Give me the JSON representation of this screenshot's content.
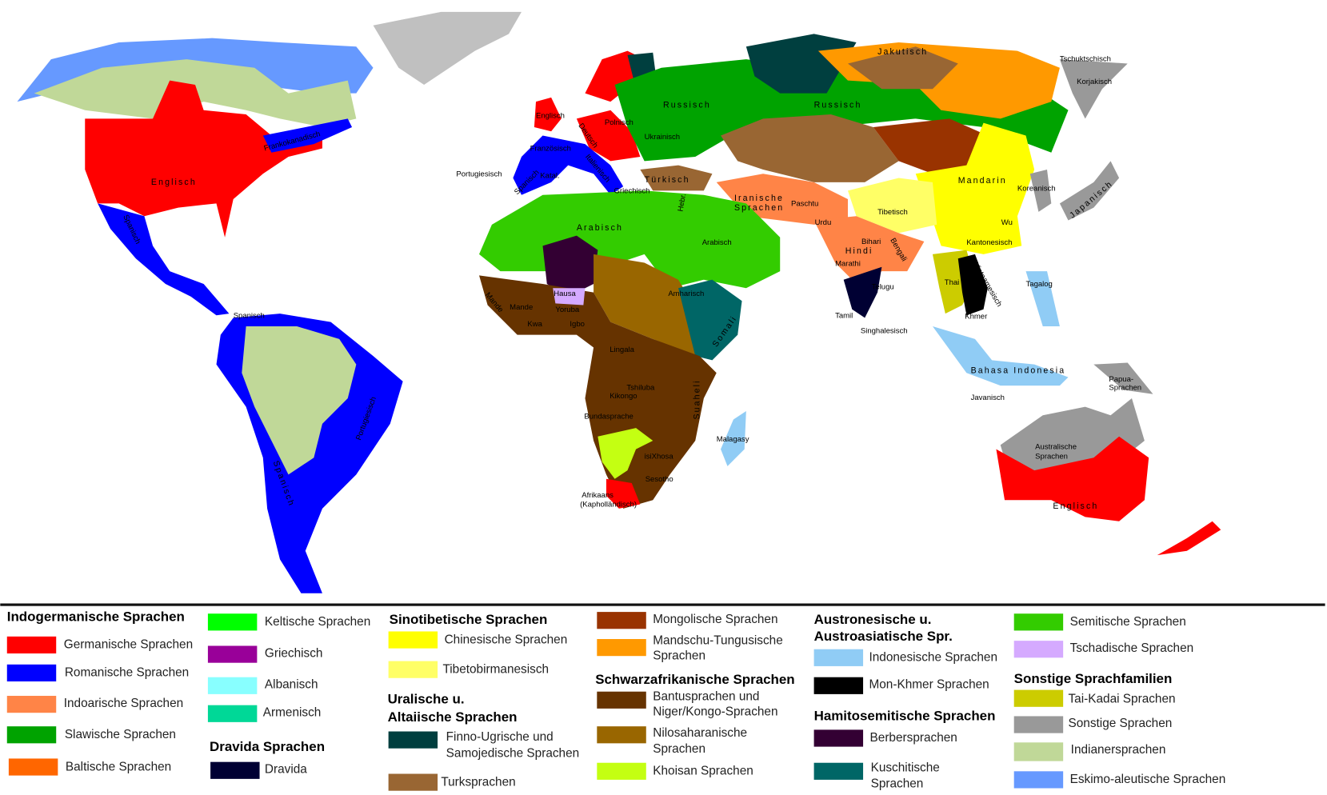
{
  "map_labels": {
    "na_englisch": "Englisch",
    "frankokanadisch": "Frankokanadisch",
    "mx_spanisch": "Spanisch",
    "ve_spanisch": "Spanisch",
    "br_portugiesisch": "Portugiesisch",
    "sa_spanisch": "Spanisch",
    "uk_englisch": "Englisch",
    "deutsch": "Deutsch",
    "polnisch": "Polnisch",
    "ukrainisch": "Ukrainisch",
    "russisch1": "Russisch",
    "russisch2": "Russisch",
    "jakutisch": "Jakutisch",
    "tschuktschisch": "Tschuktschisch",
    "korjakisch": "Korjakisch",
    "franzoesisch": "Französisch",
    "italienisch": "Italienisch",
    "portugiesisch": "Portugiesisch",
    "es_spanisch": "Spanisch",
    "katal": "Katal.",
    "griechisch": "Griechisch",
    "tuerkisch": "Türkisch",
    "hebr": "Hebr.",
    "iranische1": "Iranische",
    "iranische2": "Sprachen",
    "paschtu": "Paschtu",
    "urdu": "Urdu",
    "tibetisch": "Tibetisch",
    "mandarin": "Mandarin",
    "koreanisch": "Koreanisch",
    "japanisch": "Japanisch",
    "wu": "Wu",
    "kantonesisch": "Kantonesisch",
    "bihari": "Bihari",
    "hindi": "Hindi",
    "bengali": "Bengali",
    "marathi": "Marathi",
    "telugu": "Telugu",
    "tamil": "Tamil",
    "singhalesisch": "Singhalesisch",
    "thai": "Thai",
    "vietnamesisch": "Vietnamesisch",
    "khmer": "Khmer",
    "tagalog": "Tagalog",
    "bahasa": "Bahasa Indonesia",
    "javanisch": "Javanisch",
    "papua1": "Papua-",
    "papua2": "Sprachen",
    "austral1": "Australische",
    "austral2": "Sprachen",
    "au_englisch": "Englisch",
    "arabisch1": "Arabisch",
    "arabisch2": "Arabisch",
    "amharisch": "Amharisch",
    "somali": "Somali",
    "hausa": "Hausa",
    "yoruba": "Yoruba",
    "igbo": "Igbo",
    "mande1": "Mande",
    "mande2": "Mande",
    "kwa": "Kwa",
    "lingala": "Lingala",
    "tshiluba": "Tshiluba",
    "kikongo": "Kikongo",
    "bundasprache": "Bundasprache",
    "suaheli": "Suaheli",
    "isixhosa": "isiXhosa",
    "sesotho": "Sesotho",
    "afrikaans1": "Afrikaans",
    "afrikaans2": "(Kapholländisch)",
    "malagasy": "Malagasy"
  },
  "legend": {
    "indogermanisch": {
      "heading": "Indogermanische Sprachen",
      "items": [
        {
          "label": "Germanische Sprachen",
          "color": "#ff0000"
        },
        {
          "label": "Romanische Sprachen",
          "color": "#0000ff"
        },
        {
          "label": "Indoarische Sprachen",
          "color": "#ff8447"
        },
        {
          "label": "Slawische Sprachen",
          "color": "#00a300"
        },
        {
          "label": "Baltische Sprachen",
          "color": "#ff6600"
        },
        {
          "label": "Keltische Sprachen",
          "color": "#00ff00"
        },
        {
          "label": "Griechisch",
          "color": "#990099"
        },
        {
          "label": "Albanisch",
          "color": "#88ffff"
        },
        {
          "label": "Armenisch",
          "color": "#00d897"
        }
      ]
    },
    "dravida": {
      "heading": "Dravida Sprachen",
      "items": [
        {
          "label": "Dravida",
          "color": "#000033"
        }
      ]
    },
    "sinotibetisch": {
      "heading": "Sinotibetische Sprachen",
      "items": [
        {
          "label": "Chinesische Sprachen",
          "color": "#ffff00"
        },
        {
          "label": "Tibetobirmanesisch",
          "color": "#ffff66"
        }
      ]
    },
    "uralisch": {
      "heading1": "Uralische u.",
      "heading2": "Altaiische Sprachen",
      "items": [
        {
          "label1": "Finno-Ugrische und",
          "label2": "Samojedische Sprachen",
          "color": "#003f3f"
        },
        {
          "label": "Turksprachen",
          "color": "#996633"
        },
        {
          "label": "Mongolische Sprachen",
          "color": "#993300"
        },
        {
          "label1": "Mandschu-Tungusische",
          "label2": "Sprachen",
          "color": "#ff9900"
        }
      ]
    },
    "schwarzafrikanisch": {
      "heading": "Schwarzafrikanische Sprachen",
      "items": [
        {
          "label1": "Bantusprachen und",
          "label2": "Niger/Kongo-Sprachen",
          "color": "#663300"
        },
        {
          "label1": "Nilosaharanische",
          "label2": "Sprachen",
          "color": "#996600"
        },
        {
          "label": "Khoisan Sprachen",
          "color": "#c4ff12"
        }
      ]
    },
    "austronesisch": {
      "heading1": "Austronesische u.",
      "heading2": "Austroasiatische Spr.",
      "items": [
        {
          "label": "Indonesische Sprachen",
          "color": "#90ccf5"
        },
        {
          "label": "Mon-Khmer Sprachen",
          "color": "#000000"
        }
      ]
    },
    "hamitosemitisch": {
      "heading": "Hamitosemitische Sprachen",
      "items": [
        {
          "label": "Berbersprachen",
          "color": "#330033"
        },
        {
          "label1": "Kuschitische",
          "label2": "Sprachen",
          "color": "#006666"
        },
        {
          "label": "Semitische Sprachen",
          "color": "#33cc00"
        },
        {
          "label": "Tschadische Sprachen",
          "color": "#d5aaff"
        }
      ]
    },
    "sonstige": {
      "heading": "Sonstige Sprachfamilien",
      "items": [
        {
          "label": "Tai-Kadai Sprachen",
          "color": "#cccc00"
        },
        {
          "label": "Sonstige Sprachen",
          "color": "#999999"
        },
        {
          "label": "Indianersprachen",
          "color": "#c0d898"
        },
        {
          "label": "Eskimo-aleutische Sprachen",
          "color": "#6699ff"
        }
      ]
    }
  }
}
